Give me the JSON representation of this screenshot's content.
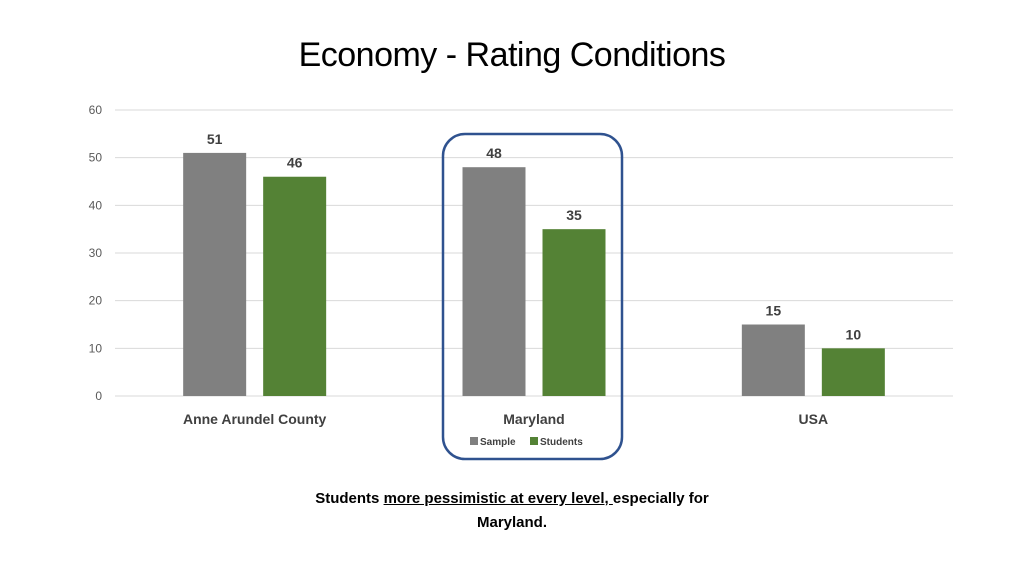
{
  "slide": {
    "title": "Economy -  Rating Conditions",
    "caption_part1": "Students ",
    "caption_emphasis": "more pessimistic at every level, ",
    "caption_part2": "especially for Maryland."
  },
  "colors": {
    "sample": "#808080",
    "students": "#548235",
    "highlight": "#2f528f",
    "grid": "#d9d9d9"
  },
  "chart_data": {
    "type": "bar",
    "categories": [
      "Anne Arundel County",
      "Maryland",
      "USA"
    ],
    "series": [
      {
        "name": "Sample",
        "values": [
          51,
          48,
          15
        ]
      },
      {
        "name": "Students",
        "values": [
          46,
          35,
          10
        ]
      }
    ],
    "ylim": [
      0,
      60
    ],
    "yticks": [
      0,
      10,
      20,
      30,
      40,
      50,
      60
    ],
    "grid": true,
    "legend_position": "bottom",
    "highlighted_category": "Maryland"
  }
}
